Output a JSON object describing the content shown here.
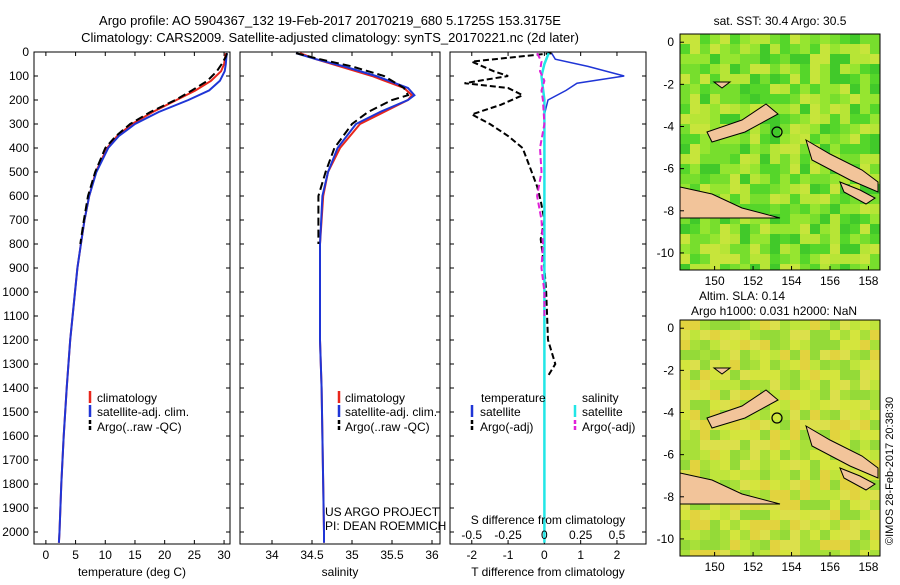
{
  "header": {
    "title_line1": "Argo profile: AO 5904367_132 19-Feb-2017 20170219_680 5.1725S 153.3175E",
    "title_line2": "Climatology: CARS2009. Satellite-adjusted climatology: synTS_20170221.nc (2d later)"
  },
  "colors": {
    "climatology": "#e8261c",
    "satellite": "#1f35d6",
    "argo": "#000000",
    "sat_s": "#22e6e6",
    "argo_s": "#e020d8"
  },
  "depth_ticks": [
    0,
    100,
    200,
    300,
    400,
    500,
    600,
    700,
    800,
    900,
    1000,
    1100,
    1200,
    1300,
    1400,
    1500,
    1600,
    1700,
    1800,
    1900,
    2000
  ],
  "chart_data": [
    {
      "type": "line",
      "id": "temperature",
      "xlabel": "temperature (deg C)",
      "ylabel": "",
      "xlim": [
        -2,
        31
      ],
      "ylim": [
        2050,
        0
      ],
      "xticks": [
        0,
        5,
        10,
        15,
        20,
        25,
        30
      ],
      "legend": [
        "climatology",
        "satellite-adj. clim.",
        "Argo(..raw -QC)"
      ],
      "series": [
        {
          "name": "climatology",
          "depth": [
            5,
            20,
            50,
            80,
            120,
            160,
            200,
            250,
            300,
            350,
            400,
            500,
            600,
            700,
            800,
            900,
            1000,
            1200,
            1400,
            1600,
            1800,
            2000,
            2045
          ],
          "values": [
            30.3,
            30.2,
            30.0,
            29.5,
            27.8,
            25.2,
            22.0,
            18.0,
            14.5,
            12.0,
            10.3,
            8.4,
            7.3,
            6.5,
            5.9,
            5.3,
            4.9,
            4.1,
            3.5,
            3.0,
            2.6,
            2.3,
            2.2
          ]
        },
        {
          "name": "satellite-adj. clim.",
          "depth": [
            5,
            20,
            50,
            80,
            120,
            160,
            200,
            250,
            300,
            350,
            400,
            500,
            600,
            700,
            800,
            900,
            1000,
            1200,
            1400,
            1600,
            1800,
            2000,
            2045
          ],
          "values": [
            30.5,
            30.4,
            30.3,
            30.1,
            29.3,
            27.5,
            24.0,
            19.0,
            15.0,
            12.3,
            10.5,
            8.5,
            7.3,
            6.5,
            5.9,
            5.3,
            4.9,
            4.1,
            3.5,
            3.0,
            2.6,
            2.3,
            2.2
          ]
        },
        {
          "name": "Argo(..raw -QC)",
          "depth": [
            5,
            20,
            50,
            80,
            120,
            160,
            200,
            250,
            300,
            350,
            400,
            500,
            600,
            700,
            800
          ],
          "values": [
            30.5,
            30.3,
            29.6,
            28.8,
            27.2,
            24.6,
            21.8,
            17.6,
            14.2,
            11.8,
            10.0,
            8.3,
            7.1,
            6.4,
            5.8
          ]
        }
      ]
    },
    {
      "type": "line",
      "id": "salinity",
      "xlabel": "salinity",
      "xlim": [
        33.6,
        36.1
      ],
      "ylim": [
        2050,
        0
      ],
      "xticks": [
        34,
        34.5,
        35,
        35.5,
        36
      ],
      "legend": [
        "climatology",
        "satellite-adj. clim.",
        "Argo(..raw -QC)"
      ],
      "series": [
        {
          "name": "climatology",
          "depth": [
            5,
            30,
            60,
            100,
            150,
            180,
            200,
            250,
            300,
            400,
            500,
            600,
            800,
            1000,
            1200,
            1400,
            1600,
            1800,
            2000,
            2045
          ],
          "values": [
            34.35,
            34.55,
            34.85,
            35.25,
            35.65,
            35.75,
            35.7,
            35.4,
            35.1,
            34.85,
            34.7,
            34.64,
            34.6,
            34.6,
            34.6,
            34.62,
            34.63,
            34.64,
            34.65,
            34.65
          ]
        },
        {
          "name": "satellite-adj. clim.",
          "depth": [
            5,
            30,
            60,
            100,
            150,
            180,
            200,
            250,
            300,
            400,
            500,
            600,
            800,
            1000,
            1200,
            1400,
            1600,
            1800,
            2000,
            2045
          ],
          "values": [
            34.3,
            34.55,
            34.9,
            35.3,
            35.7,
            35.78,
            35.7,
            35.35,
            35.05,
            34.82,
            34.7,
            34.63,
            34.6,
            34.6,
            34.6,
            34.62,
            34.63,
            34.64,
            34.65,
            34.65
          ]
        },
        {
          "name": "Argo(..raw -QC)",
          "depth": [
            5,
            30,
            60,
            100,
            150,
            180,
            200,
            250,
            300,
            400,
            500,
            600,
            800
          ],
          "values": [
            34.3,
            34.6,
            35.0,
            35.4,
            35.65,
            35.7,
            35.5,
            35.2,
            35.0,
            34.78,
            34.67,
            34.58,
            34.58
          ]
        }
      ]
    },
    {
      "type": "line",
      "id": "difference",
      "xlabel": "T difference from climatology",
      "xlabel_top": "S difference from climatology",
      "xlim": [
        -2.6,
        2.8
      ],
      "ylim": [
        2050,
        0
      ],
      "xticks_T": [
        -2,
        -1,
        0,
        1,
        2
      ],
      "xticks_S": [
        -0.5,
        -0.25,
        0,
        0.25,
        0.5
      ],
      "legend_temperature": [
        "satellite",
        "Argo(-adj)"
      ],
      "legend_salinity": [
        "satellite",
        "Argo(-adj)"
      ],
      "legend_titles": [
        "temperature",
        "salinity"
      ],
      "series": [
        {
          "name": "T satellite",
          "depth": [
            5,
            30,
            60,
            100,
            130,
            160,
            200,
            260,
            300,
            400,
            500,
            600,
            800,
            1000,
            1400,
            2000
          ],
          "values": [
            0.2,
            0.3,
            1.2,
            2.2,
            0.9,
            0.6,
            0.1,
            0.0,
            0.0,
            0.0,
            0.0,
            0.0,
            0.0,
            0.0,
            0.0,
            0.0
          ]
        },
        {
          "name": "T Argo(-adj)",
          "depth": [
            5,
            40,
            80,
            100,
            130,
            150,
            180,
            220,
            260,
            300,
            350,
            400,
            480,
            560,
            620,
            700,
            780,
            900,
            1000,
            1200,
            1300,
            1350
          ],
          "values": [
            0.2,
            -2.0,
            -1.4,
            -1.0,
            -2.2,
            -1.0,
            -0.6,
            -1.2,
            -2.0,
            -1.5,
            -1.0,
            -0.6,
            -0.4,
            -0.2,
            -0.1,
            0.0,
            -0.1,
            0.0,
            0.05,
            0.1,
            0.3,
            0.1
          ]
        },
        {
          "name": "S satellite",
          "depth": [
            5,
            50,
            100,
            150,
            200,
            300,
            500,
            800,
            1200,
            1600,
            2000,
            2045
          ],
          "values": [
            0.03,
            0.0,
            -0.02,
            -0.01,
            0.0,
            0.0,
            0.0,
            0.0,
            0.0,
            0.0,
            0.0,
            0.0
          ]
        },
        {
          "name": "S Argo(-adj)",
          "depth": [
            5,
            40,
            80,
            120,
            160,
            200,
            300,
            400,
            500,
            600,
            700,
            800,
            900,
            1000,
            1100
          ],
          "values": [
            -0.05,
            -0.02,
            -0.03,
            0.0,
            -0.02,
            -0.01,
            0.0,
            -0.03,
            -0.02,
            -0.05,
            -0.02,
            -0.01,
            -0.02,
            0.0,
            0.0
          ]
        }
      ]
    }
  ],
  "maps": {
    "top": {
      "title": "sat. SST: 30.4  Argo: 30.5",
      "xticks": [
        150,
        152,
        154,
        156,
        158
      ],
      "yticks": [
        0,
        -2,
        -4,
        -6,
        -8,
        -10
      ]
    },
    "bottom": {
      "title_line1": "Altim. SLA: 0.14",
      "title_line2": "Argo h1000: 0.031  h2000: NaN",
      "xticks": [
        150,
        152,
        154,
        156,
        158
      ],
      "yticks": [
        0,
        -2,
        -4,
        -6,
        -8,
        -10
      ]
    }
  },
  "annotations": {
    "project_line1": "US ARGO PROJECT",
    "project_line2": "PI: DEAN ROEMMICH",
    "watermark": "©IMOS 28-Feb-2017 20:38:30"
  }
}
